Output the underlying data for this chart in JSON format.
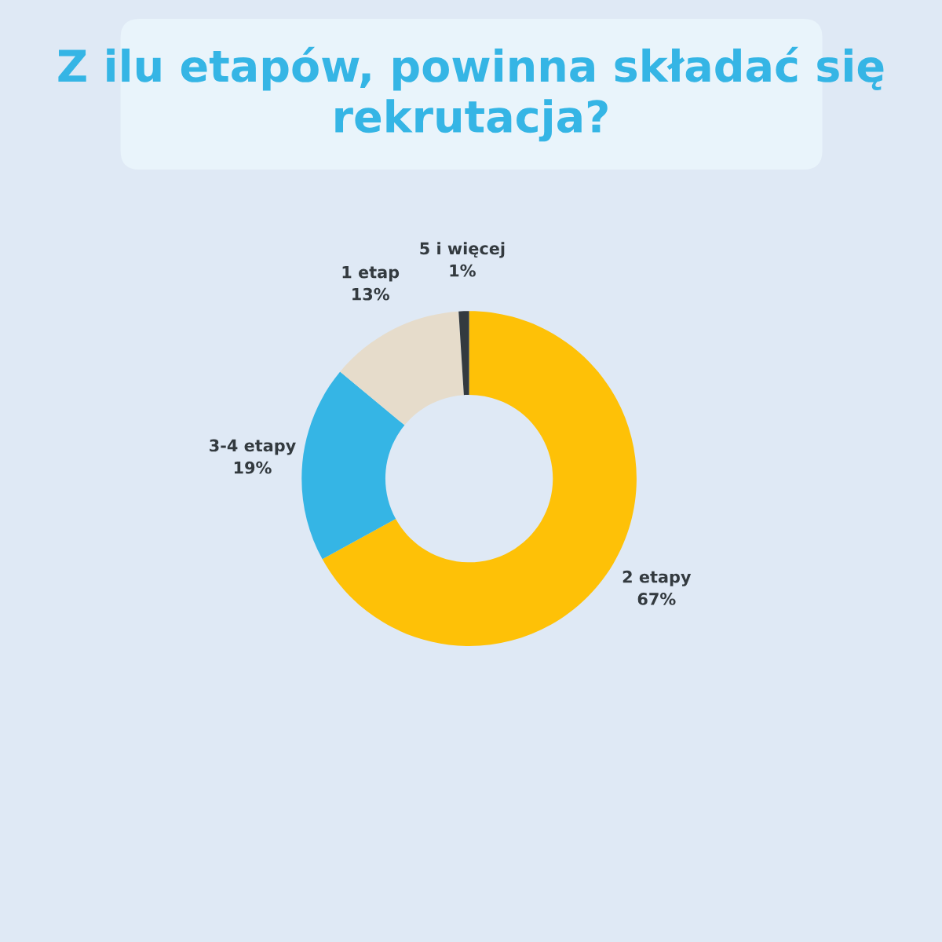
{
  "chart_data": {
    "type": "donut",
    "title": "Z ilu etapów, powinna składać się rekrutacja?",
    "categories": [
      "2 etapy",
      "3-4 etapy",
      "1 etap",
      "5 i więcej"
    ],
    "values": [
      67,
      19,
      13,
      1
    ],
    "value_labels": [
      "67%",
      "19%",
      "13%",
      "1%"
    ],
    "colors": [
      "#fec107",
      "#35b5e5",
      "#e6dccb",
      "#333a3f"
    ],
    "legend": false
  }
}
